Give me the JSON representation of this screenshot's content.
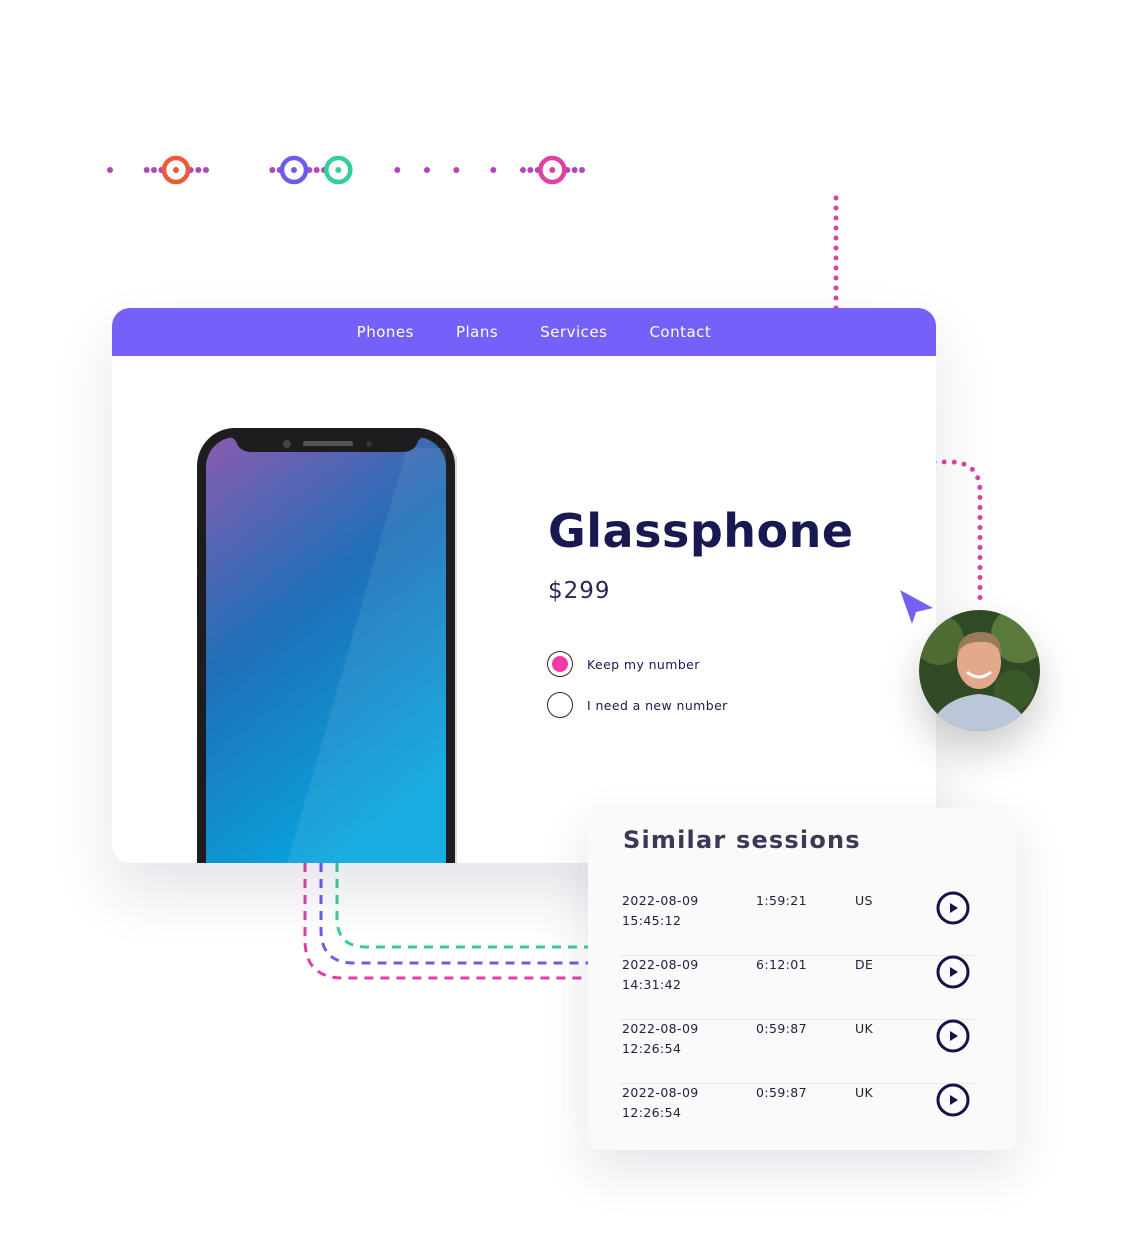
{
  "waveform": {
    "markers": [
      {
        "color": "#f0583a"
      },
      {
        "color": "#6b5cf0"
      },
      {
        "color": "#35cf9a"
      },
      {
        "color": "#e23fa6"
      }
    ],
    "gradient_top": "#e33e9f",
    "gradient_bottom": "#7361f5"
  },
  "nav": {
    "color": "#7560fa",
    "items": [
      "Phones",
      "Plans",
      "Services",
      "Contact"
    ]
  },
  "product": {
    "title": "Glassphone",
    "price": "$299",
    "options": [
      {
        "label": "Keep my number",
        "selected": true
      },
      {
        "label": "I need a new number",
        "selected": false
      }
    ]
  },
  "sessions": {
    "title": "Similar sessions",
    "rows": [
      {
        "date": "2022-08-09",
        "time": "15:45:12",
        "duration": "1:59:21",
        "country": "US"
      },
      {
        "date": "2022-08-09",
        "time": "14:31:42",
        "duration": "6:12:01",
        "country": "DE"
      },
      {
        "date": "2022-08-09",
        "time": "12:26:54",
        "duration": "0:59:87",
        "country": "UK"
      },
      {
        "date": "2022-08-09",
        "time": "12:26:54",
        "duration": "0:59:87",
        "country": "UK"
      }
    ]
  },
  "connector_colors": [
    "#e23fa6",
    "#6b5cf0",
    "#35cf9a"
  ]
}
